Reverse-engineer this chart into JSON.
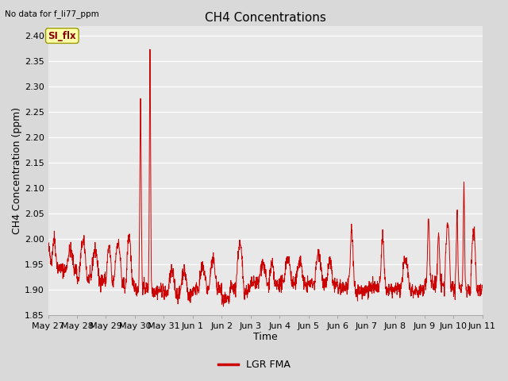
{
  "title": "CH4 Concentrations",
  "xlabel": "Time",
  "ylabel": "CH4 Concentration (ppm)",
  "top_left_text": "No data for f_li77_ppm",
  "legend_label": "LGR FMA",
  "legend_color": "#cc0000",
  "line_color": "#cc0000",
  "background_color": "#d9d9d9",
  "plot_bg_color": "#e8e8e8",
  "grid_color": "#ffffff",
  "ylim": [
    1.85,
    2.42
  ],
  "yticks": [
    1.85,
    1.9,
    1.95,
    2.0,
    2.05,
    2.1,
    2.15,
    2.2,
    2.25,
    2.3,
    2.35,
    2.4
  ],
  "xlim": [
    0,
    15
  ],
  "xtick_labels": [
    "May 27",
    "May 28",
    "May 29",
    "May 30",
    "May 31",
    "Jun 1",
    "Jun 2",
    "Jun 3",
    "Jun 4",
    "Jun 5",
    "Jun 6",
    "Jun 7",
    "Jun 8",
    "Jun 9",
    "Jun 10",
    "Jun 11"
  ],
  "annotation_text": "SI_flx",
  "title_fontsize": 11,
  "label_fontsize": 9,
  "tick_fontsize": 8
}
